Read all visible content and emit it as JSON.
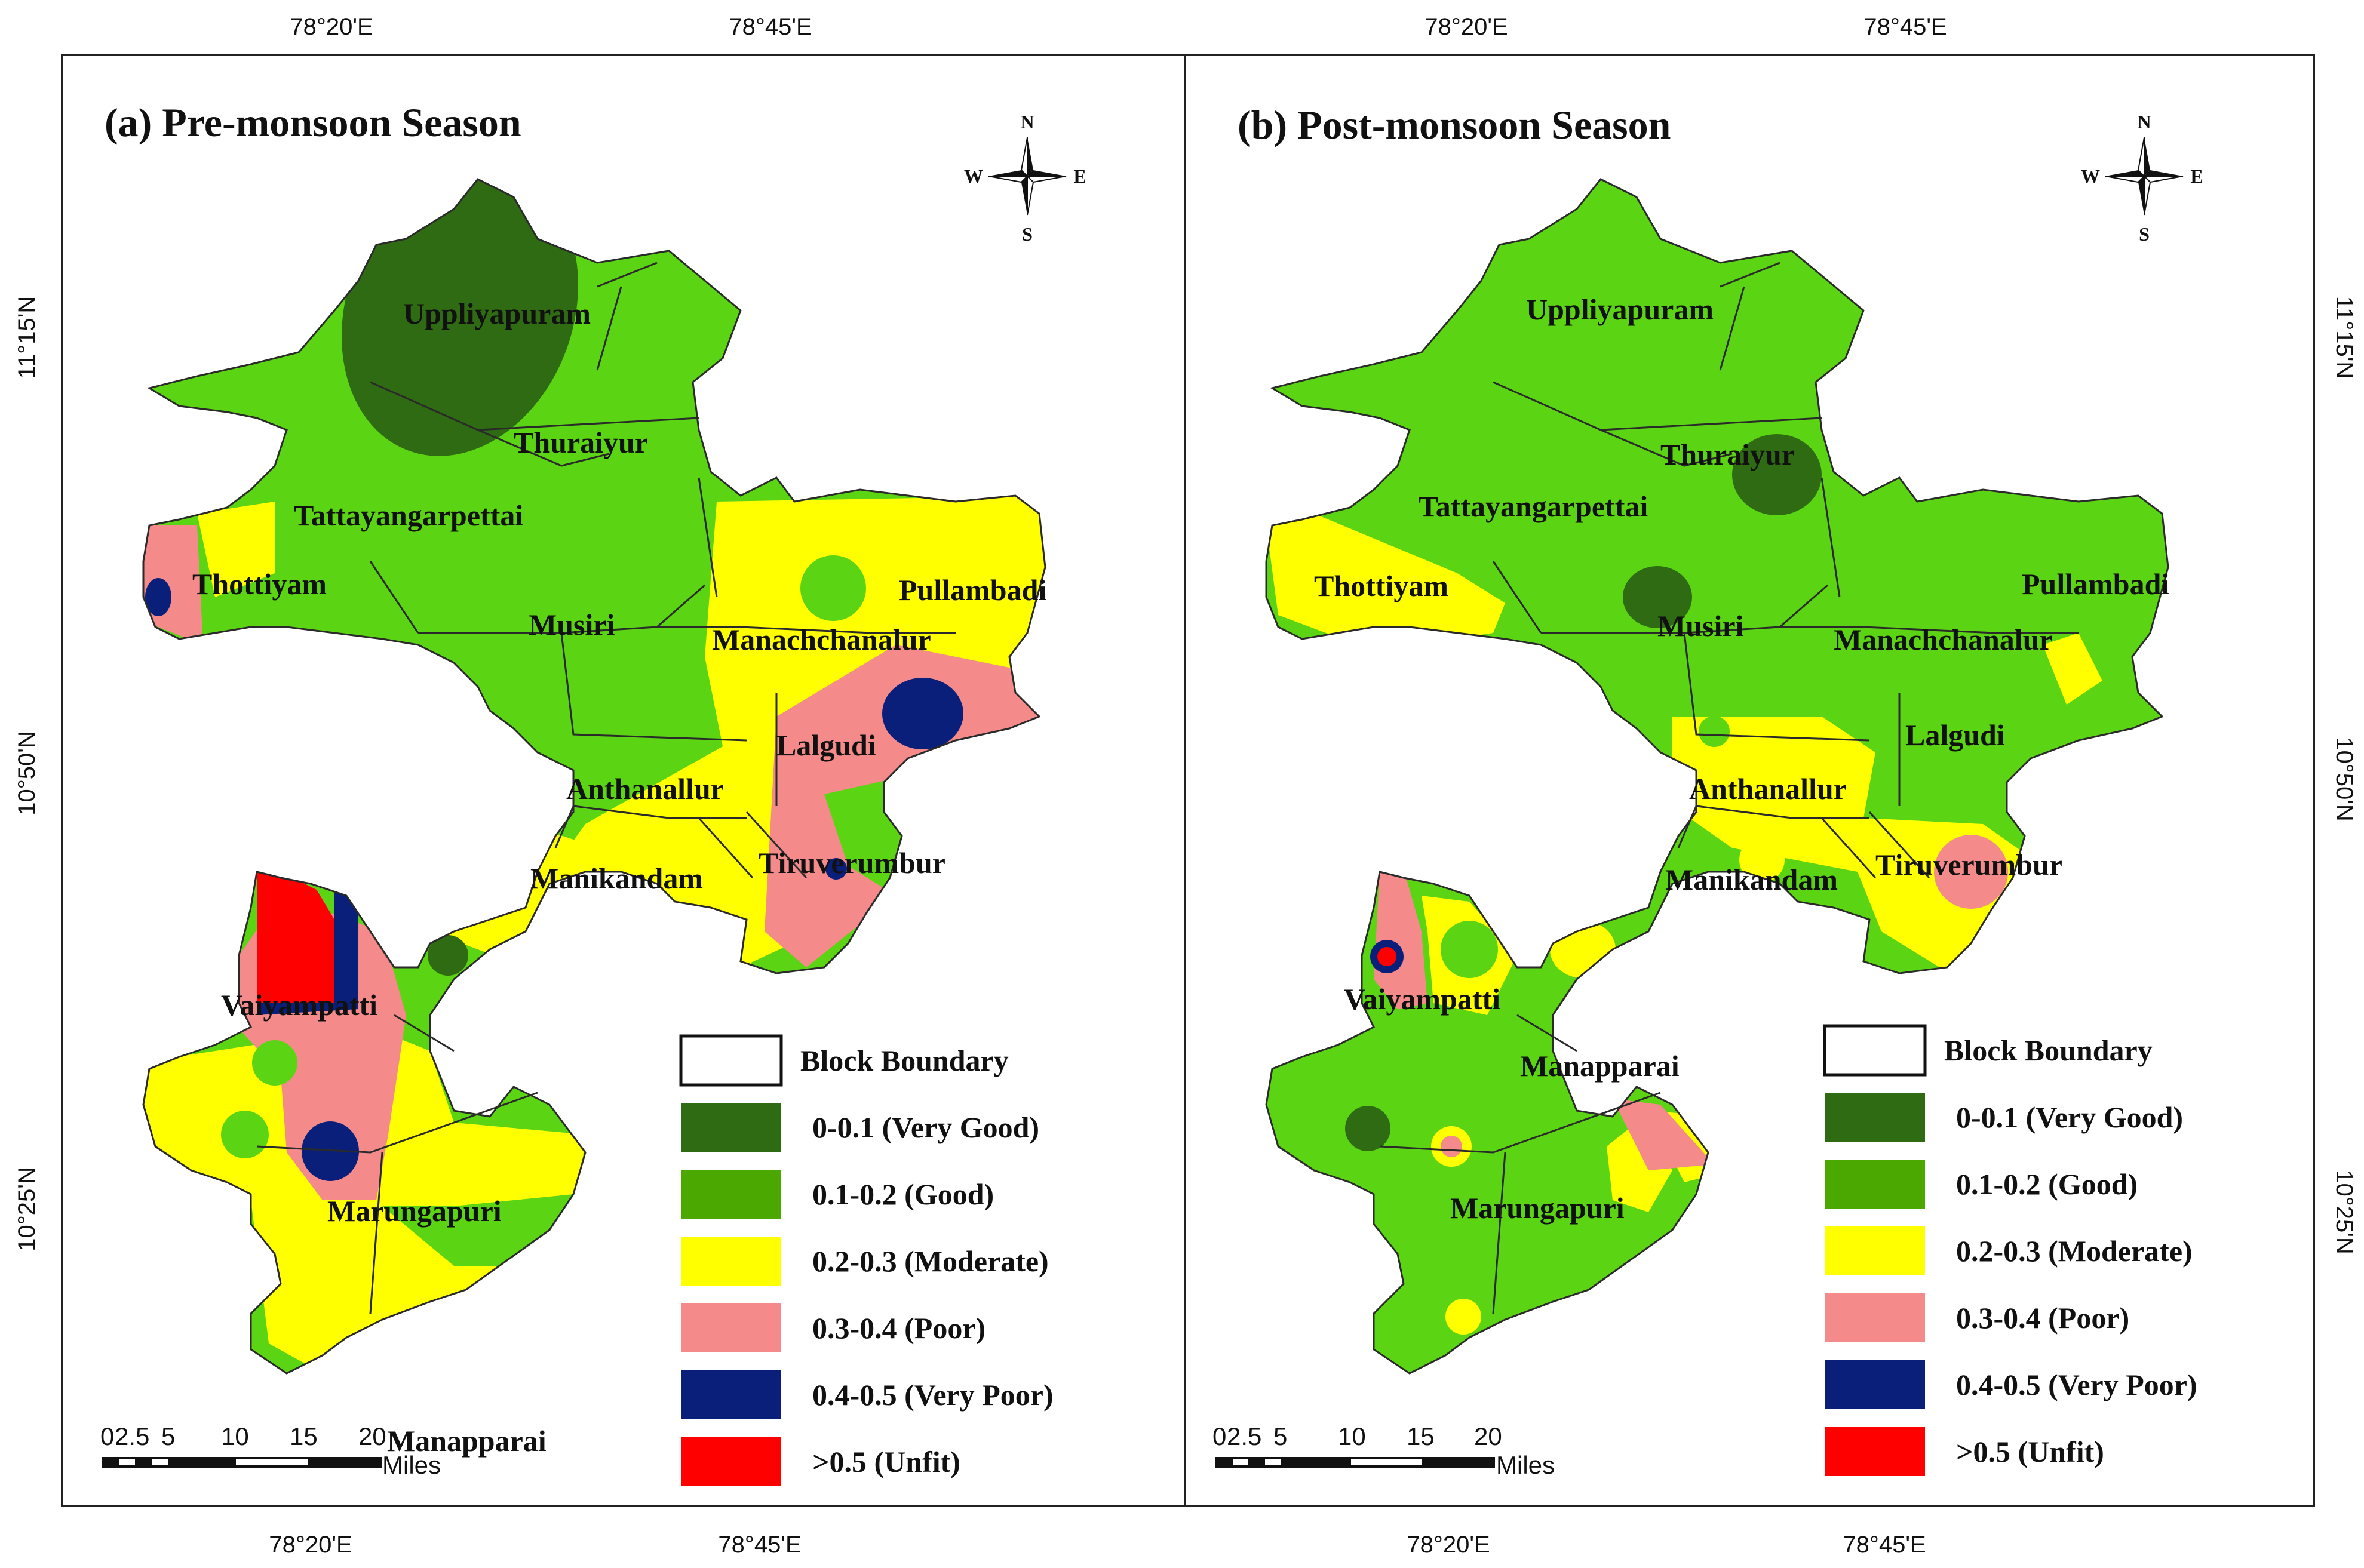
{
  "colors": {
    "very_good": "#2e6b12",
    "good": "#5bd414",
    "good_legend": "#4aa800",
    "moderate": "#ffff00",
    "poor": "#f48a8a",
    "very_poor": "#0a1f7a",
    "unfit": "#ff0000"
  },
  "panels": [
    {
      "id": "a",
      "title": "(a) Pre-monsoon Season",
      "top_coords": [
        "78°20'E",
        "78°45'E"
      ],
      "bottom_coords": [
        "78°20'E",
        "78°45'E"
      ],
      "left_coords": [
        "11°15'N",
        "10°50'N",
        "10°25'N"
      ],
      "right_coords": [],
      "labels": [
        "Uppliyapuram",
        "Thuraiyur",
        "Tattayangarpettai",
        "Thottiyam",
        "Musiri",
        "Pullambadi",
        "Manachchanalur",
        "Lalgudi",
        "Anthanallur",
        "Manikandam",
        "Tiruverumbur",
        "Vaiyampatti",
        "Marungapuri",
        "Manapparai"
      ],
      "compass": {
        "n": "N",
        "s": "S",
        "e": "E",
        "w": "W"
      },
      "scale": {
        "ticks": [
          "0",
          "2.5",
          "5",
          "10",
          "15",
          "20"
        ],
        "unit": "Miles"
      },
      "legend": [
        "Block Boundary",
        "0-0.1 (Very Good)",
        "0.1-0.2 (Good)",
        "0.2-0.3 (Moderate)",
        "0.3-0.4 (Poor)",
        "0.4-0.5 (Very Poor)",
        ">0.5 (Unfit)"
      ]
    },
    {
      "id": "b",
      "title": "(b) Post-monsoon Season",
      "top_coords": [
        "78°20'E",
        "78°45'E"
      ],
      "bottom_coords": [
        "78°20'E",
        "78°45'E"
      ],
      "left_coords": [],
      "right_coords": [
        "11°15'N",
        "10°50'N",
        "10°25'N"
      ],
      "labels": [
        "Uppliyapuram",
        "Thuraiyur",
        "Tattayangarpettai",
        "Thottiyam",
        "Musiri",
        "Pullambadi",
        "Manachchanalur",
        "Lalgudi",
        "Anthanallur",
        "Manikandam",
        "Tiruverumbur",
        "Vaiyampatti",
        "Manapparai",
        "Marungapuri"
      ],
      "compass": {
        "n": "N",
        "s": "S",
        "e": "E",
        "w": "W"
      },
      "scale": {
        "ticks": [
          "0",
          "2.5",
          "5",
          "10",
          "15",
          "20"
        ],
        "unit": "Miles"
      },
      "legend": [
        "Block Boundary",
        "0-0.1 (Very Good)",
        "0.1-0.2 (Good)",
        "0.2-0.3 (Moderate)",
        "0.3-0.4 (Poor)",
        "0.4-0.5 (Very Poor)",
        ">0.5 (Unfit)"
      ]
    }
  ]
}
